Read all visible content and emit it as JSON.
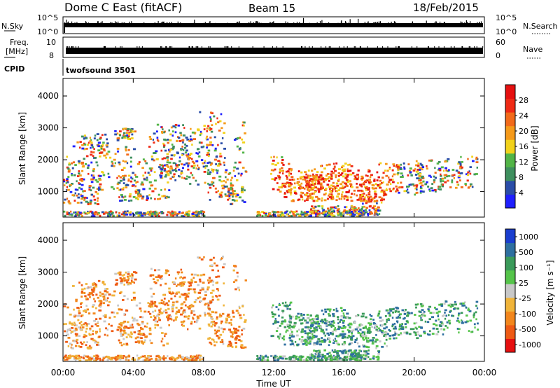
{
  "header": {
    "title": "Dome C East (fitACF)",
    "beam": "Beam 15",
    "date": "18/Feb/2015"
  },
  "strip_panels": {
    "nsky_label": "N.Sky",
    "nsky_ticks": [
      "10^5",
      "10^0"
    ],
    "nsearch_label": "N.Search",
    "nsearch_ticks": [
      "10^5",
      "10^0"
    ],
    "freq_label_line1": "Freq.",
    "freq_label_line2": "[MHz]",
    "freq_ticks": [
      "10",
      "8"
    ],
    "nave_label": "Nave",
    "nave_ticks": [
      "60",
      "0"
    ],
    "cpid_label": "CPID",
    "cpid_value": "twofsound 3501"
  },
  "colors": {
    "power_scale": [
      "#1f1fff",
      "#2a4da8",
      "#3e8f5e",
      "#52b447",
      "#f2d21b",
      "#f59a1a",
      "#f26a1a",
      "#ef2a15",
      "#e61010"
    ],
    "velocity_scale": [
      "#e61010",
      "#ee5a14",
      "#f2861c",
      "#f0b43a",
      "#c8c8c8",
      "#55c44a",
      "#3a9a5a",
      "#2e6fa0",
      "#1a3ecf"
    ],
    "frame": "#000000",
    "ground_scatter": "#b0b0b0"
  },
  "chart_data": [
    {
      "type": "heatmap",
      "title": "",
      "xlabel": "Time UT",
      "ylabel": "Slant Range [km]",
      "x_ticks": [
        "00:00",
        "04:00",
        "08:00",
        "12:00",
        "16:00",
        "20:00",
        "00:00"
      ],
      "y_ticks": [
        "1000",
        "2000",
        "3000",
        "4000"
      ],
      "ylim": [
        200,
        4550
      ],
      "colorbar_label": "Power [dB]",
      "colorbar_ticks": [
        "4",
        "8",
        "12",
        "16",
        "20",
        "24",
        "28"
      ],
      "clim": [
        0,
        32
      ]
    },
    {
      "type": "heatmap",
      "title": "",
      "xlabel": "Time UT",
      "ylabel": "Slant Range [km]",
      "x_ticks": [
        "00:00",
        "04:00",
        "08:00",
        "12:00",
        "16:00",
        "20:00",
        "00:00"
      ],
      "y_ticks": [
        "1000",
        "2000",
        "3000",
        "4000"
      ],
      "ylim": [
        200,
        4550
      ],
      "colorbar_label": "Velocity [m s⁻¹]",
      "colorbar_ticks": [
        "1000",
        "500",
        "100",
        "25",
        "-25",
        "-100",
        "-500",
        "-1000"
      ]
    }
  ]
}
